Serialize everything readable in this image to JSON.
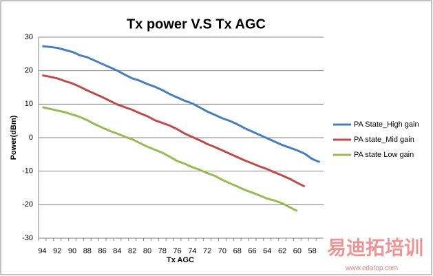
{
  "chart_data": {
    "type": "line",
    "title": "Tx power V.S Tx AGC",
    "x_label": "Tx AGC",
    "y_label": "Power(dBm)",
    "categories": [
      "94",
      null,
      "92",
      null,
      "90",
      null,
      "88",
      null,
      "86",
      null,
      "84",
      null,
      "82",
      null,
      "80",
      null,
      "78",
      null,
      "76",
      null,
      "74",
      null,
      "72",
      null,
      "70",
      null,
      "68",
      null,
      "66",
      null,
      "64",
      null,
      "62",
      null,
      "60",
      null,
      "58",
      null
    ],
    "series": [
      {
        "name": "PA State_High gain",
        "color": "#4a7ebb",
        "values": [
          27.3,
          27.1,
          26.8,
          26.2,
          25.6,
          24.6,
          24,
          23,
          22,
          21,
          20,
          18.8,
          17.7,
          17,
          16,
          15.2,
          14.2,
          13,
          12,
          11,
          10.2,
          9,
          7.8,
          6.8,
          5.8,
          5,
          4,
          2.8,
          1.8,
          0.8,
          -0.2,
          -1.2,
          -2.2,
          -3,
          -3.8,
          -4.8,
          -6.4,
          -7.3
        ]
      },
      {
        "name": "PA state_Mid gain",
        "color": "#be4b48",
        "values": [
          18.6,
          18.2,
          17.7,
          16.9,
          16.2,
          15.2,
          14.1,
          13.1,
          12.1,
          11,
          9.9,
          9.1,
          8.3,
          7.3,
          6.4,
          5.2,
          4.4,
          3.6,
          2.5,
          1.2,
          0.2,
          -0.8,
          -1.9,
          -2.8,
          -3.8,
          -4.8,
          -5.8,
          -6.8,
          -7.7,
          -8.6,
          -9.4,
          -10.4,
          -11.3,
          -12.3,
          -13.5,
          -14.6,
          null,
          null
        ]
      },
      {
        "name": "PA state Low gain",
        "color": "#98b954",
        "values": [
          9.1,
          8.6,
          8.1,
          7.6,
          6.9,
          6.2,
          5.2,
          4,
          3,
          2,
          1.2,
          0.3,
          -0.5,
          -1.6,
          -2.7,
          -3.6,
          -4.5,
          -5.7,
          -7,
          -7.8,
          -8.8,
          -9.6,
          -10.6,
          -11.4,
          -12.6,
          -13.6,
          -14.6,
          -15.6,
          -16.4,
          -17.3,
          -18.2,
          -18.8,
          -19.6,
          -20.8,
          -21.9,
          null,
          null,
          null
        ]
      }
    ],
    "ylim": [
      -30,
      30
    ],
    "yticks": [
      -30,
      -20,
      -10,
      0,
      10,
      20,
      30
    ],
    "grid": true,
    "legend": "right",
    "watermark": "易迪拓培训",
    "watermark_url": "www.edatop.com"
  }
}
